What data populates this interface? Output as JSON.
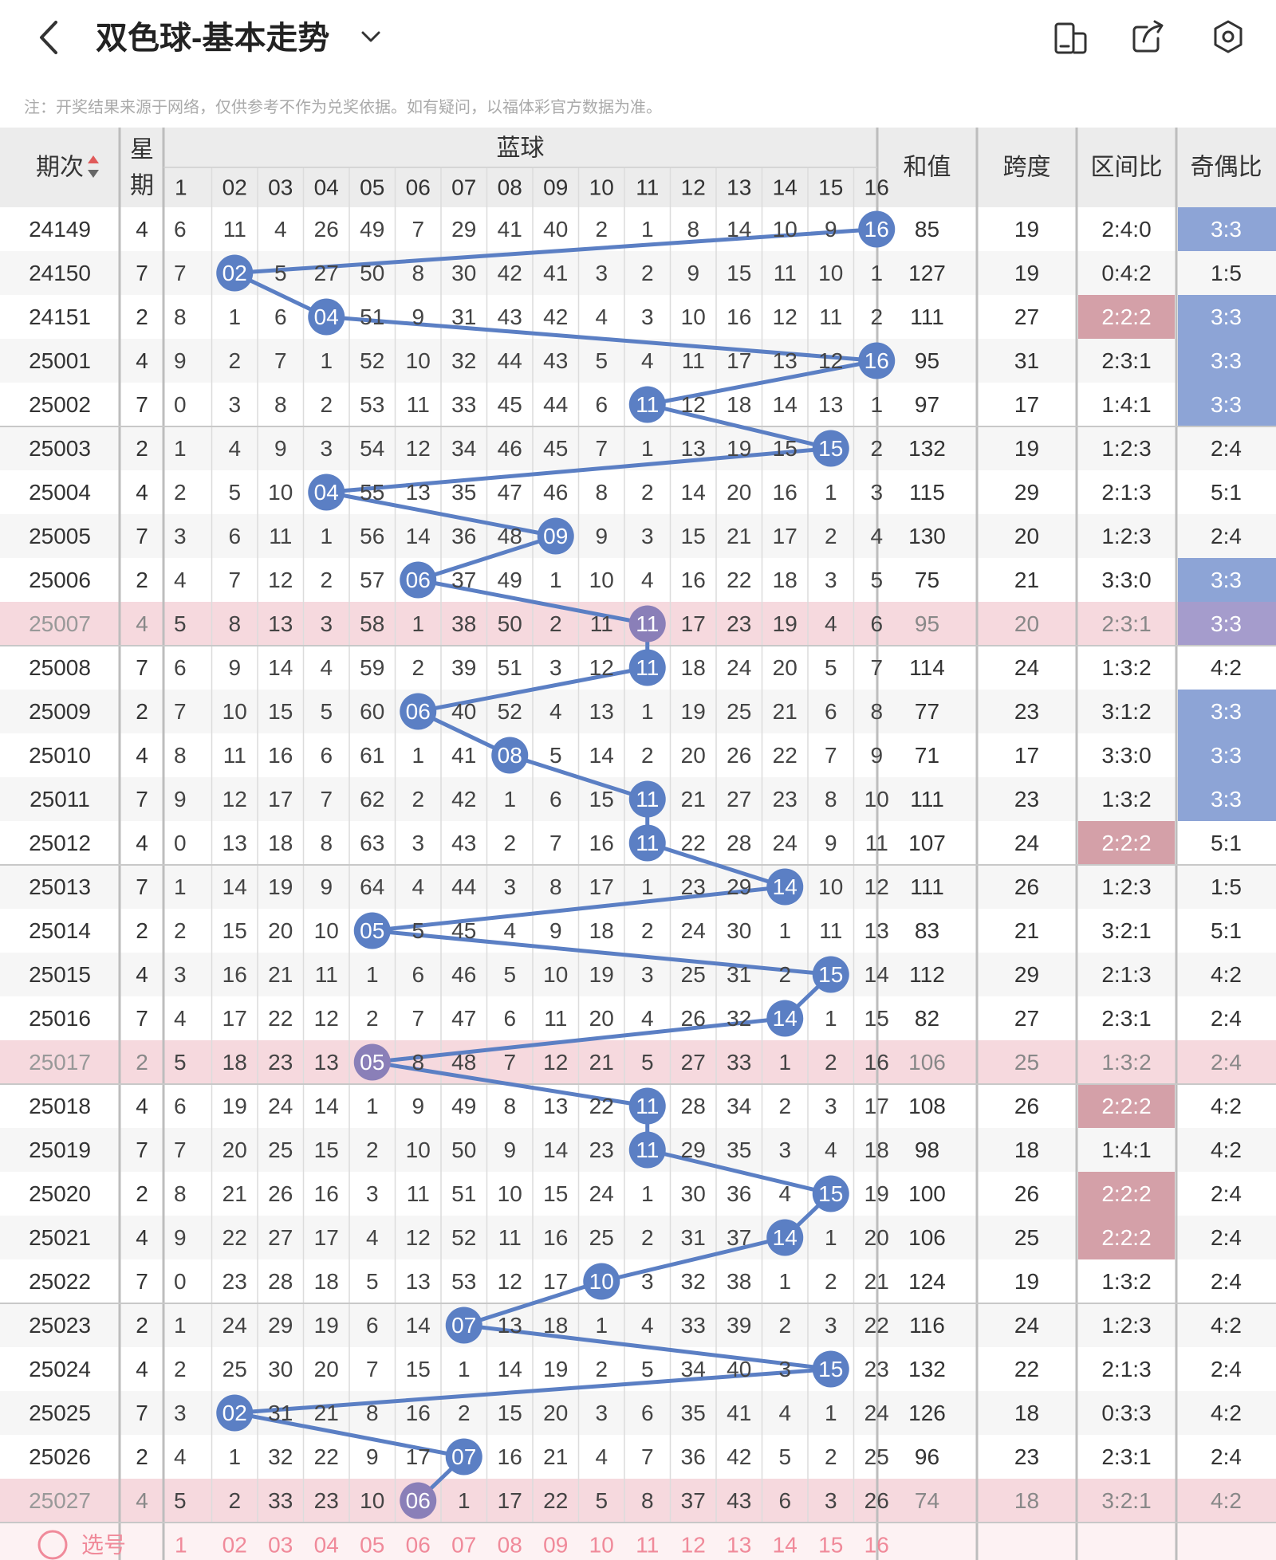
{
  "header": {
    "title": "双色球-基本走势"
  },
  "notice": "注：开奖结果来源于网络，仅供参考不作为兑奖依据。如有疑问，以福体彩官方数据为准。",
  "columns": {
    "period": "期次",
    "weekday": "星期",
    "blue_group": "蓝球",
    "sum": "和值",
    "span": "跨度",
    "zone_ratio": "区间比",
    "odd_even": "奇偶比"
  },
  "blue_headers": [
    "1",
    "02",
    "03",
    "04",
    "05",
    "06",
    "07",
    "08",
    "09",
    "10",
    "11",
    "12",
    "13",
    "14",
    "15",
    "16"
  ],
  "footer": {
    "select_label": "选号",
    "numbers": [
      "1",
      "02",
      "03",
      "04",
      "05",
      "06",
      "07",
      "08",
      "09",
      "10",
      "11",
      "12",
      "13",
      "14",
      "15",
      "16"
    ]
  },
  "colors": {
    "ball": "#5b7fc4",
    "ball_highlight": "#8a7fb8",
    "highlight_row": "#f6d9de",
    "odd_even_cell": "#8da4d6",
    "zone_cell": "#d4a0a8"
  },
  "rows": [
    {
      "period": "24149",
      "weekday": "4",
      "cells": [
        "6",
        "11",
        "4",
        "26",
        "49",
        "7",
        "29",
        "41",
        "40",
        "2",
        "1",
        "8",
        "14",
        "10",
        "9",
        "16"
      ],
      "blue": 16,
      "sum": "85",
      "span": "19",
      "zone": "2:4:0",
      "oe": "3:3",
      "hl": false,
      "oe_hl": true,
      "zone_hl": false
    },
    {
      "period": "24150",
      "weekday": "7",
      "cells": [
        "7",
        "02",
        "5",
        "27",
        "50",
        "8",
        "30",
        "42",
        "41",
        "3",
        "2",
        "9",
        "15",
        "11",
        "10",
        "1"
      ],
      "blue": 2,
      "sum": "127",
      "span": "19",
      "zone": "0:4:2",
      "oe": "1:5",
      "hl": false,
      "oe_hl": false,
      "zone_hl": false
    },
    {
      "period": "24151",
      "weekday": "2",
      "cells": [
        "8",
        "1",
        "6",
        "04",
        "51",
        "9",
        "31",
        "43",
        "42",
        "4",
        "3",
        "10",
        "16",
        "12",
        "11",
        "2"
      ],
      "blue": 4,
      "sum": "111",
      "span": "27",
      "zone": "2:2:2",
      "oe": "3:3",
      "hl": false,
      "oe_hl": true,
      "zone_hl": true
    },
    {
      "period": "25001",
      "weekday": "4",
      "cells": [
        "9",
        "2",
        "7",
        "1",
        "52",
        "10",
        "32",
        "44",
        "43",
        "5",
        "4",
        "11",
        "17",
        "13",
        "12",
        "16"
      ],
      "blue": 16,
      "sum": "95",
      "span": "31",
      "zone": "2:3:1",
      "oe": "3:3",
      "hl": false,
      "oe_hl": true,
      "zone_hl": false
    },
    {
      "period": "25002",
      "weekday": "7",
      "cells": [
        "0",
        "3",
        "8",
        "2",
        "53",
        "11",
        "33",
        "45",
        "44",
        "6",
        "11",
        "12",
        "18",
        "14",
        "13",
        "1"
      ],
      "blue": 11,
      "sum": "97",
      "span": "17",
      "zone": "1:4:1",
      "oe": "3:3",
      "hl": false,
      "oe_hl": true,
      "zone_hl": false
    },
    {
      "period": "25003",
      "weekday": "2",
      "cells": [
        "1",
        "4",
        "9",
        "3",
        "54",
        "12",
        "34",
        "46",
        "45",
        "7",
        "1",
        "13",
        "19",
        "15",
        "15",
        "2"
      ],
      "blue": 15,
      "sum": "132",
      "span": "19",
      "zone": "1:2:3",
      "oe": "2:4",
      "hl": false,
      "oe_hl": false,
      "zone_hl": false
    },
    {
      "period": "25004",
      "weekday": "4",
      "cells": [
        "2",
        "5",
        "10",
        "04",
        "55",
        "13",
        "35",
        "47",
        "46",
        "8",
        "2",
        "14",
        "20",
        "16",
        "1",
        "3"
      ],
      "blue": 4,
      "sum": "115",
      "span": "29",
      "zone": "2:1:3",
      "oe": "5:1",
      "hl": false,
      "oe_hl": false,
      "zone_hl": false
    },
    {
      "period": "25005",
      "weekday": "7",
      "cells": [
        "3",
        "6",
        "11",
        "1",
        "56",
        "14",
        "36",
        "48",
        "09",
        "9",
        "3",
        "15",
        "21",
        "17",
        "2",
        "4"
      ],
      "blue": 9,
      "sum": "130",
      "span": "20",
      "zone": "1:2:3",
      "oe": "2:4",
      "hl": false,
      "oe_hl": false,
      "zone_hl": false
    },
    {
      "period": "25006",
      "weekday": "2",
      "cells": [
        "4",
        "7",
        "12",
        "2",
        "57",
        "06",
        "37",
        "49",
        "1",
        "10",
        "4",
        "16",
        "22",
        "18",
        "3",
        "5"
      ],
      "blue": 6,
      "sum": "75",
      "span": "21",
      "zone": "3:3:0",
      "oe": "3:3",
      "hl": false,
      "oe_hl": true,
      "zone_hl": false
    },
    {
      "period": "25007",
      "weekday": "4",
      "cells": [
        "5",
        "8",
        "13",
        "3",
        "58",
        "1",
        "38",
        "50",
        "2",
        "11",
        "11",
        "17",
        "23",
        "19",
        "4",
        "6"
      ],
      "blue": 11,
      "sum": "95",
      "span": "20",
      "zone": "2:3:1",
      "oe": "3:3",
      "hl": true,
      "oe_hl": true,
      "zone_hl": false
    },
    {
      "period": "25008",
      "weekday": "7",
      "cells": [
        "6",
        "9",
        "14",
        "4",
        "59",
        "2",
        "39",
        "51",
        "3",
        "12",
        "11",
        "18",
        "24",
        "20",
        "5",
        "7"
      ],
      "blue": 11,
      "sum": "114",
      "span": "24",
      "zone": "1:3:2",
      "oe": "4:2",
      "hl": false,
      "oe_hl": false,
      "zone_hl": false
    },
    {
      "period": "25009",
      "weekday": "2",
      "cells": [
        "7",
        "10",
        "15",
        "5",
        "60",
        "06",
        "40",
        "52",
        "4",
        "13",
        "1",
        "19",
        "25",
        "21",
        "6",
        "8"
      ],
      "blue": 6,
      "sum": "77",
      "span": "23",
      "zone": "3:1:2",
      "oe": "3:3",
      "hl": false,
      "oe_hl": true,
      "zone_hl": false
    },
    {
      "period": "25010",
      "weekday": "4",
      "cells": [
        "8",
        "11",
        "16",
        "6",
        "61",
        "1",
        "41",
        "08",
        "5",
        "14",
        "2",
        "20",
        "26",
        "22",
        "7",
        "9"
      ],
      "blue": 8,
      "sum": "71",
      "span": "17",
      "zone": "3:3:0",
      "oe": "3:3",
      "hl": false,
      "oe_hl": true,
      "zone_hl": false
    },
    {
      "period": "25011",
      "weekday": "7",
      "cells": [
        "9",
        "12",
        "17",
        "7",
        "62",
        "2",
        "42",
        "1",
        "6",
        "15",
        "11",
        "21",
        "27",
        "23",
        "8",
        "10"
      ],
      "blue": 11,
      "sum": "111",
      "span": "23",
      "zone": "1:3:2",
      "oe": "3:3",
      "hl": false,
      "oe_hl": true,
      "zone_hl": false
    },
    {
      "period": "25012",
      "weekday": "4",
      "cells": [
        "0",
        "13",
        "18",
        "8",
        "63",
        "3",
        "43",
        "2",
        "7",
        "16",
        "11",
        "22",
        "28",
        "24",
        "9",
        "11"
      ],
      "blue": 11,
      "sum": "107",
      "span": "24",
      "zone": "2:2:2",
      "oe": "5:1",
      "hl": false,
      "oe_hl": false,
      "zone_hl": true
    },
    {
      "period": "25013",
      "weekday": "7",
      "cells": [
        "1",
        "14",
        "19",
        "9",
        "64",
        "4",
        "44",
        "3",
        "8",
        "17",
        "1",
        "23",
        "29",
        "14",
        "10",
        "12"
      ],
      "blue": 14,
      "sum": "111",
      "span": "26",
      "zone": "1:2:3",
      "oe": "1:5",
      "hl": false,
      "oe_hl": false,
      "zone_hl": false
    },
    {
      "period": "25014",
      "weekday": "2",
      "cells": [
        "2",
        "15",
        "20",
        "10",
        "05",
        "5",
        "45",
        "4",
        "9",
        "18",
        "2",
        "24",
        "30",
        "1",
        "11",
        "13"
      ],
      "blue": 5,
      "sum": "83",
      "span": "21",
      "zone": "3:2:1",
      "oe": "5:1",
      "hl": false,
      "oe_hl": false,
      "zone_hl": false
    },
    {
      "period": "25015",
      "weekday": "4",
      "cells": [
        "3",
        "16",
        "21",
        "11",
        "1",
        "6",
        "46",
        "5",
        "10",
        "19",
        "3",
        "25",
        "31",
        "2",
        "15",
        "14"
      ],
      "blue": 15,
      "sum": "112",
      "span": "29",
      "zone": "2:1:3",
      "oe": "4:2",
      "hl": false,
      "oe_hl": false,
      "zone_hl": false
    },
    {
      "period": "25016",
      "weekday": "7",
      "cells": [
        "4",
        "17",
        "22",
        "12",
        "2",
        "7",
        "47",
        "6",
        "11",
        "20",
        "4",
        "26",
        "32",
        "14",
        "1",
        "15"
      ],
      "blue": 14,
      "sum": "82",
      "span": "27",
      "zone": "2:3:1",
      "oe": "2:4",
      "hl": false,
      "oe_hl": false,
      "zone_hl": false
    },
    {
      "period": "25017",
      "weekday": "2",
      "cells": [
        "5",
        "18",
        "23",
        "13",
        "05",
        "8",
        "48",
        "7",
        "12",
        "21",
        "5",
        "27",
        "33",
        "1",
        "2",
        "16"
      ],
      "blue": 5,
      "sum": "106",
      "span": "25",
      "zone": "1:3:2",
      "oe": "2:4",
      "hl": true,
      "oe_hl": false,
      "zone_hl": false
    },
    {
      "period": "25018",
      "weekday": "4",
      "cells": [
        "6",
        "19",
        "24",
        "14",
        "1",
        "9",
        "49",
        "8",
        "13",
        "22",
        "11",
        "28",
        "34",
        "2",
        "3",
        "17"
      ],
      "blue": 11,
      "sum": "108",
      "span": "26",
      "zone": "2:2:2",
      "oe": "4:2",
      "hl": false,
      "oe_hl": false,
      "zone_hl": true
    },
    {
      "period": "25019",
      "weekday": "7",
      "cells": [
        "7",
        "20",
        "25",
        "15",
        "2",
        "10",
        "50",
        "9",
        "14",
        "23",
        "11",
        "29",
        "35",
        "3",
        "4",
        "18"
      ],
      "blue": 11,
      "sum": "98",
      "span": "18",
      "zone": "1:4:1",
      "oe": "4:2",
      "hl": false,
      "oe_hl": false,
      "zone_hl": false
    },
    {
      "period": "25020",
      "weekday": "2",
      "cells": [
        "8",
        "21",
        "26",
        "16",
        "3",
        "11",
        "51",
        "10",
        "15",
        "24",
        "1",
        "30",
        "36",
        "4",
        "15",
        "19"
      ],
      "blue": 15,
      "sum": "100",
      "span": "26",
      "zone": "2:2:2",
      "oe": "2:4",
      "hl": false,
      "oe_hl": false,
      "zone_hl": true
    },
    {
      "period": "25021",
      "weekday": "4",
      "cells": [
        "9",
        "22",
        "27",
        "17",
        "4",
        "12",
        "52",
        "11",
        "16",
        "25",
        "2",
        "31",
        "37",
        "14",
        "1",
        "20"
      ],
      "blue": 14,
      "sum": "106",
      "span": "25",
      "zone": "2:2:2",
      "oe": "2:4",
      "hl": false,
      "oe_hl": false,
      "zone_hl": true
    },
    {
      "period": "25022",
      "weekday": "7",
      "cells": [
        "0",
        "23",
        "28",
        "18",
        "5",
        "13",
        "53",
        "12",
        "17",
        "10",
        "3",
        "32",
        "38",
        "1",
        "2",
        "21"
      ],
      "blue": 10,
      "sum": "124",
      "span": "19",
      "zone": "1:3:2",
      "oe": "2:4",
      "hl": false,
      "oe_hl": false,
      "zone_hl": false
    },
    {
      "period": "25023",
      "weekday": "2",
      "cells": [
        "1",
        "24",
        "29",
        "19",
        "6",
        "14",
        "07",
        "13",
        "18",
        "1",
        "4",
        "33",
        "39",
        "2",
        "3",
        "22"
      ],
      "blue": 7,
      "sum": "116",
      "span": "24",
      "zone": "1:2:3",
      "oe": "4:2",
      "hl": false,
      "oe_hl": false,
      "zone_hl": false
    },
    {
      "period": "25024",
      "weekday": "4",
      "cells": [
        "2",
        "25",
        "30",
        "20",
        "7",
        "15",
        "1",
        "14",
        "19",
        "2",
        "5",
        "34",
        "40",
        "3",
        "15",
        "23"
      ],
      "blue": 15,
      "sum": "132",
      "span": "22",
      "zone": "2:1:3",
      "oe": "2:4",
      "hl": false,
      "oe_hl": false,
      "zone_hl": false
    },
    {
      "period": "25025",
      "weekday": "7",
      "cells": [
        "3",
        "02",
        "31",
        "21",
        "8",
        "16",
        "2",
        "15",
        "20",
        "3",
        "6",
        "35",
        "41",
        "4",
        "1",
        "24"
      ],
      "blue": 2,
      "sum": "126",
      "span": "18",
      "zone": "0:3:3",
      "oe": "4:2",
      "hl": false,
      "oe_hl": false,
      "zone_hl": false
    },
    {
      "period": "25026",
      "weekday": "2",
      "cells": [
        "4",
        "1",
        "32",
        "22",
        "9",
        "17",
        "07",
        "16",
        "21",
        "4",
        "7",
        "36",
        "42",
        "5",
        "2",
        "25"
      ],
      "blue": 7,
      "sum": "96",
      "span": "23",
      "zone": "2:3:1",
      "oe": "2:4",
      "hl": false,
      "oe_hl": false,
      "zone_hl": false
    },
    {
      "period": "25027",
      "weekday": "4",
      "cells": [
        "5",
        "2",
        "33",
        "23",
        "10",
        "06",
        "1",
        "17",
        "22",
        "5",
        "8",
        "37",
        "43",
        "6",
        "3",
        "26"
      ],
      "blue": 6,
      "sum": "74",
      "span": "18",
      "zone": "3:2:1",
      "oe": "4:2",
      "hl": true,
      "oe_hl": false,
      "zone_hl": false
    }
  ]
}
